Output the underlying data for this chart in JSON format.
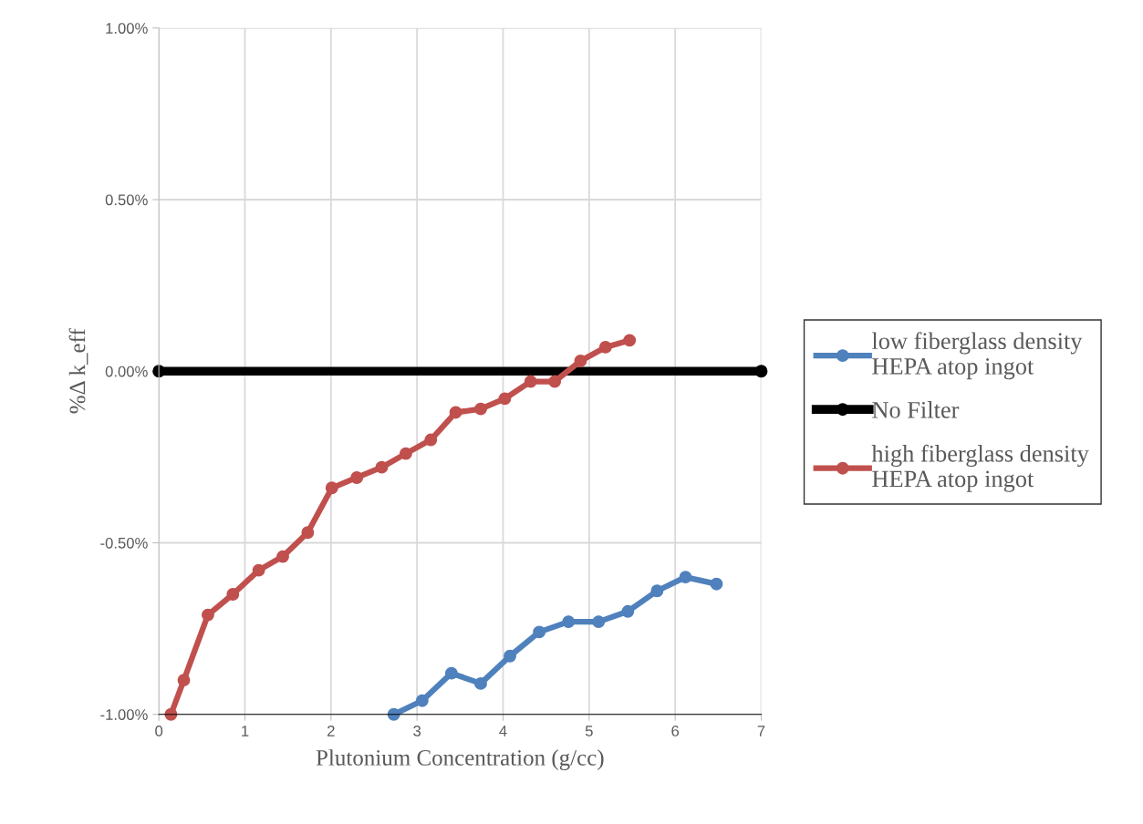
{
  "chart_data": {
    "type": "line",
    "xlabel": "Plutonium Concentration (g/cc)",
    "ylabel": "%Δ k_eff",
    "xlim": [
      0,
      7
    ],
    "xticks": [
      0,
      1,
      2,
      3,
      4,
      5,
      6,
      7
    ],
    "ylim": [
      -1,
      1
    ],
    "yticks": [
      {
        "value": -1,
        "label": "-1.00%"
      },
      {
        "value": -0.5,
        "label": "-0.50%"
      },
      {
        "value": 0,
        "label": "0.00%"
      },
      {
        "value": 0.5,
        "label": "0.50%"
      },
      {
        "value": 1,
        "label": "1.00%"
      }
    ],
    "grid": true,
    "legend": "right",
    "marker": "circle",
    "line_style": "solid",
    "series": [
      {
        "name": "low fiberglass density\nHEPA atop ingot",
        "color": "#4f81bd",
        "x": [
          2.73,
          3.06,
          3.4,
          3.74,
          4.08,
          4.42,
          4.76,
          5.11,
          5.45,
          5.79,
          6.12,
          6.48
        ],
        "values": [
          -1.0,
          -0.96,
          -0.88,
          -0.91,
          -0.83,
          -0.76,
          -0.73,
          -0.73,
          -0.7,
          -0.64,
          -0.6,
          -0.62
        ]
      },
      {
        "name": "No Filter",
        "color": "#000000",
        "x": [
          0,
          7
        ],
        "values": [
          0,
          0
        ]
      },
      {
        "name": "high fiberglass density\nHEPA atop ingot",
        "color": "#c0504d",
        "x": [
          0.14,
          0.29,
          0.57,
          0.86,
          1.16,
          1.44,
          1.73,
          2.01,
          2.3,
          2.59,
          2.87,
          3.16,
          3.45,
          3.74,
          4.02,
          4.32,
          4.6,
          4.9,
          5.19,
          5.47
        ],
        "values": [
          -1.0,
          -0.9,
          -0.71,
          -0.65,
          -0.58,
          -0.54,
          -0.47,
          -0.34,
          -0.31,
          -0.28,
          -0.24,
          -0.2,
          -0.12,
          -0.11,
          -0.08,
          -0.03,
          -0.03,
          0.03,
          0.07,
          0.09
        ]
      }
    ]
  }
}
